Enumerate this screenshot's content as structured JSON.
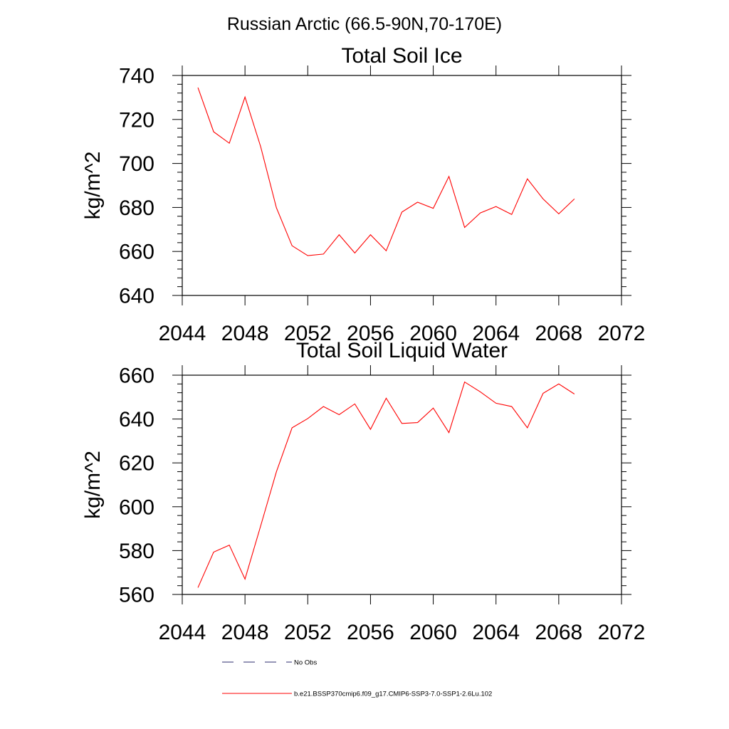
{
  "figure": {
    "suptitle": "Russian Arctic (66.5-90N,70-170E)"
  },
  "legend": {
    "placement": "bottom",
    "entries": [
      {
        "label": "No Obs",
        "color": "#2b2b6e",
        "style": "dashed"
      },
      {
        "label": "b.e21.BSSP370cmip6.f09_g17.CMIP6-SSP3-7.0-SSP1-2.6Lu.102",
        "color": "#ff0000",
        "style": "solid"
      }
    ]
  },
  "chart_data": [
    {
      "type": "line",
      "title": "Total Soil Ice",
      "xlabel": "",
      "ylabel": "kg/m^2",
      "xlim": [
        2044,
        2072
      ],
      "ylim": [
        640,
        740
      ],
      "xticks": [
        2044,
        2048,
        2052,
        2056,
        2060,
        2064,
        2068,
        2072
      ],
      "xtick_labels": [
        "2044",
        "2048",
        "2052",
        "2056",
        "2060",
        "2064",
        "2068",
        "2072"
      ],
      "yticks": [
        640,
        660,
        680,
        700,
        720,
        740
      ],
      "ytick_labels": [
        "640",
        "660",
        "680",
        "700",
        "720",
        "740"
      ],
      "grid": false,
      "x": [
        2045,
        2046,
        2047,
        2048,
        2049,
        2050,
        2051,
        2052,
        2053,
        2054,
        2055,
        2056,
        2057,
        2058,
        2059,
        2060,
        2061,
        2062,
        2063,
        2064,
        2065,
        2066,
        2067,
        2068,
        2069
      ],
      "series": [
        {
          "color": "#ff0000",
          "values": [
            734.5,
            714.4,
            709.2,
            730.2,
            707.6,
            679.9,
            662.6,
            658.1,
            658.8,
            667.6,
            659.3,
            667.6,
            660.3,
            677.9,
            682.4,
            679.6,
            694.1,
            670.9,
            677.5,
            680.4,
            676.8,
            693.0,
            683.9,
            677.1,
            683.9
          ]
        }
      ]
    },
    {
      "type": "line",
      "title": "Total Soil Liquid Water",
      "xlabel": "",
      "ylabel": "kg/m^2",
      "xlim": [
        2044,
        2072
      ],
      "ylim": [
        560,
        660
      ],
      "xticks": [
        2044,
        2048,
        2052,
        2056,
        2060,
        2064,
        2068,
        2072
      ],
      "xtick_labels": [
        "2044",
        "2048",
        "2052",
        "2056",
        "2060",
        "2064",
        "2068",
        "2072"
      ],
      "yticks": [
        560,
        580,
        600,
        620,
        640,
        660
      ],
      "ytick_labels": [
        "560",
        "580",
        "600",
        "620",
        "640",
        "660"
      ],
      "grid": false,
      "x": [
        2045,
        2046,
        2047,
        2048,
        2049,
        2050,
        2051,
        2052,
        2053,
        2054,
        2055,
        2056,
        2057,
        2058,
        2059,
        2060,
        2061,
        2062,
        2063,
        2064,
        2065,
        2066,
        2067,
        2068,
        2069
      ],
      "series": [
        {
          "color": "#ff0000",
          "values": [
            563.1,
            579.3,
            582.5,
            567.0,
            591.3,
            615.9,
            636.0,
            640.2,
            645.7,
            642.0,
            646.9,
            635.3,
            649.5,
            638.0,
            638.4,
            645.0,
            633.8,
            656.9,
            652.4,
            647.2,
            645.7,
            636.0,
            651.7,
            656.0,
            651.4
          ]
        }
      ]
    }
  ]
}
